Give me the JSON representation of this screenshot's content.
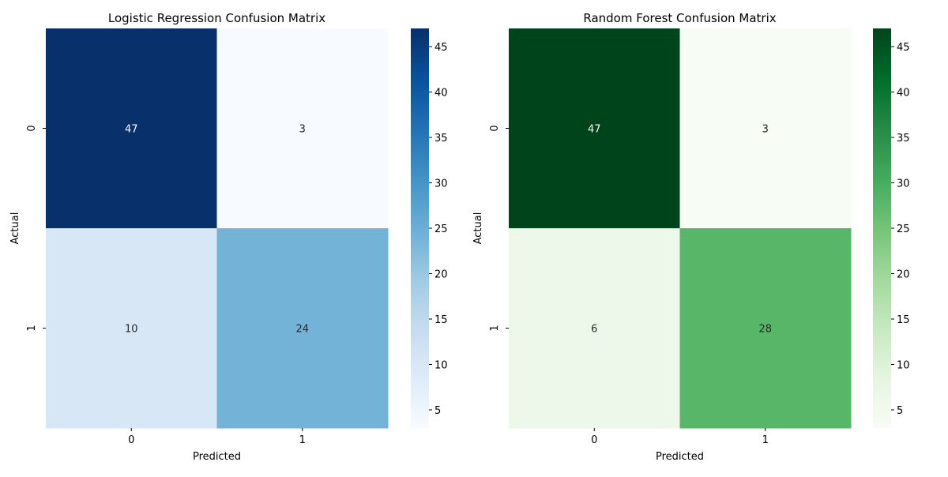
{
  "chart_data": [
    {
      "type": "heatmap",
      "title": "Logistic Regression Confusion Matrix",
      "xlabel": "Predicted",
      "ylabel": "Actual",
      "x_categories": [
        "0",
        "1"
      ],
      "y_categories": [
        "0",
        "1"
      ],
      "values": [
        [
          47,
          3
        ],
        [
          10,
          24
        ]
      ],
      "colormap": "Blues",
      "color_range": [
        3,
        47
      ],
      "colorbar_ticks": [
        5,
        10,
        15,
        20,
        25,
        30,
        35,
        40,
        45
      ],
      "annotations": true
    },
    {
      "type": "heatmap",
      "title": "Random Forest Confusion Matrix",
      "xlabel": "Predicted",
      "ylabel": "Actual",
      "x_categories": [
        "0",
        "1"
      ],
      "y_categories": [
        "0",
        "1"
      ],
      "values": [
        [
          47,
          3
        ],
        [
          6,
          28
        ]
      ],
      "colormap": "Greens",
      "color_range": [
        3,
        47
      ],
      "colorbar_ticks": [
        5,
        10,
        15,
        20,
        25,
        30,
        35,
        40,
        45
      ],
      "annotations": true
    }
  ]
}
